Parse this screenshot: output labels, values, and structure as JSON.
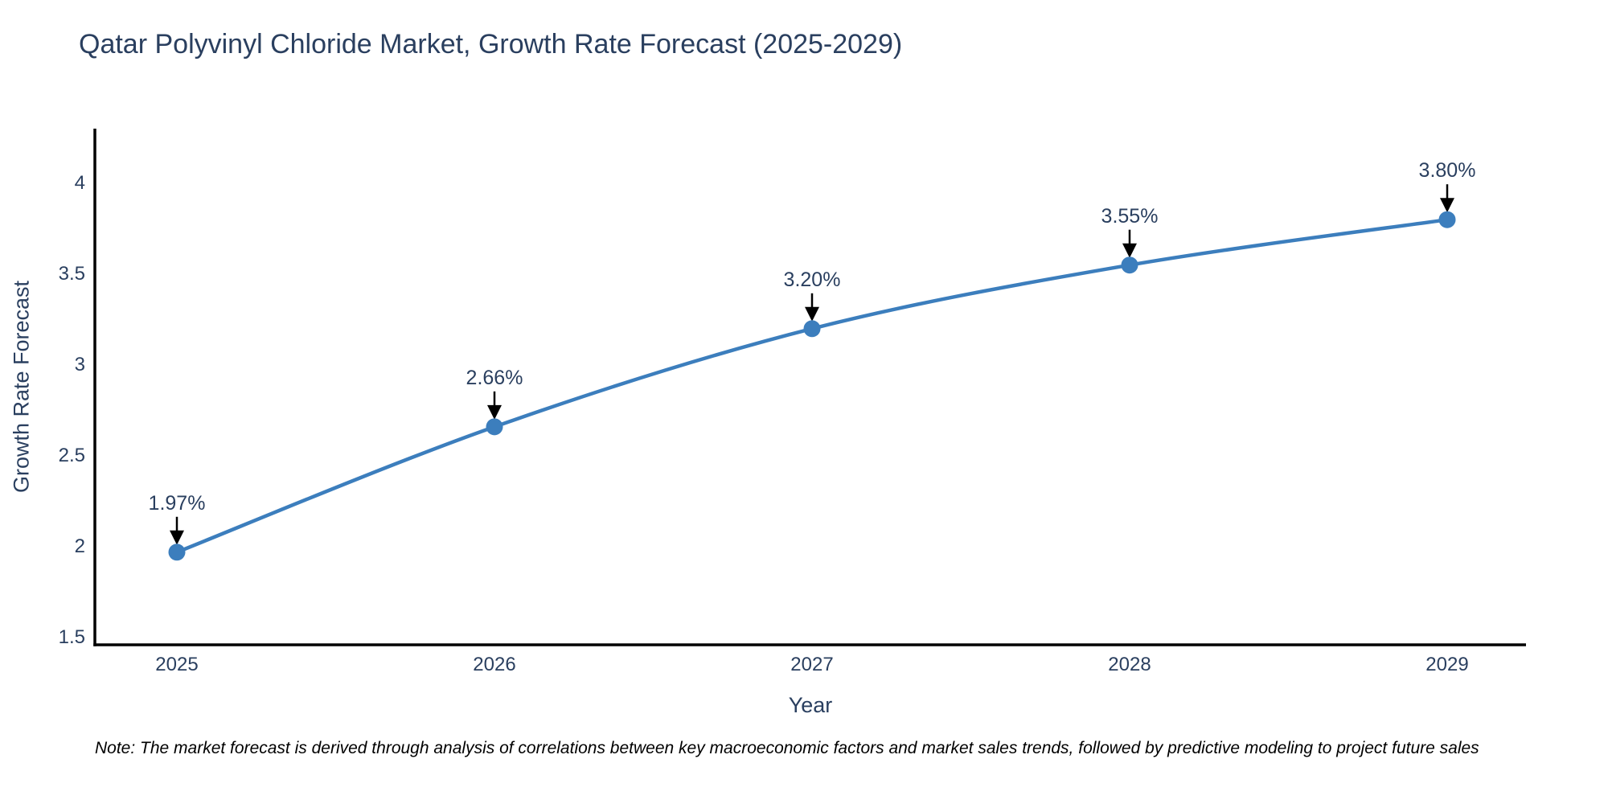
{
  "title": "Qatar Polyvinyl Chloride Market, Growth Rate Forecast (2025-2029)",
  "note": "Note: The market forecast is derived through analysis of correlations between key macroeconomic factors and market sales trends, followed by predictive modeling to project future sales",
  "chart_data": {
    "type": "line",
    "style": "spline",
    "x": [
      2025,
      2026,
      2027,
      2028,
      2029
    ],
    "values": [
      1.97,
      2.66,
      3.2,
      3.55,
      3.8
    ],
    "point_labels": [
      "1.97%",
      "2.66%",
      "3.20%",
      "3.55%",
      "3.80%"
    ],
    "title": "Qatar Polyvinyl Chloride Market, Growth Rate Forecast (2025-2029)",
    "xlabel": "Year",
    "ylabel": "Growth Rate Forecast",
    "xtick_labels": [
      "2025",
      "2026",
      "2027",
      "2028",
      "2029"
    ],
    "yticks": [
      1.5,
      2,
      2.5,
      3,
      3.5,
      4
    ],
    "ytick_labels": [
      "1.5",
      "2",
      "2.5",
      "3",
      "3.5",
      "4"
    ],
    "ylim": [
      1.5,
      4.35
    ],
    "grid": false,
    "legend_position": "none",
    "line_color": "#3c7ebd",
    "marker_color": "#3c7ebd",
    "axis_color": "#000000",
    "text_color": "#2a3f5f",
    "arrow_color": "#000000",
    "background_color": "#ffffff"
  }
}
